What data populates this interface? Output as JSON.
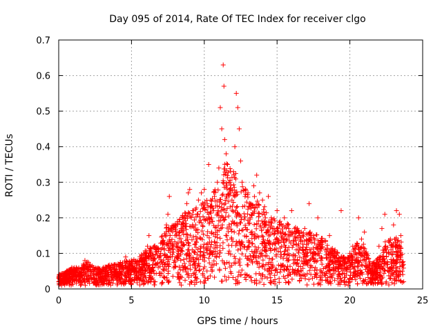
{
  "chart_data": {
    "type": "scatter",
    "title": "Day 095 of 2014, Rate Of TEC Index for receiver clgo",
    "xlabel": "GPS time / hours",
    "ylabel": "ROTI / TECUs",
    "xlim": [
      0,
      25
    ],
    "ylim": [
      0,
      0.7
    ],
    "x_ticks": [
      0,
      5,
      10,
      15,
      20,
      25
    ],
    "y_ticks": [
      0,
      0.1,
      0.2,
      0.3,
      0.4,
      0.5,
      0.6,
      0.7
    ],
    "x_tick_labels": [
      "0",
      "5",
      "10",
      "15",
      "20",
      "25"
    ],
    "y_tick_labels": [
      "0",
      "0.1",
      "0.2",
      "0.3",
      "0.4",
      "0.5",
      "0.6",
      "0.7"
    ],
    "grid": true,
    "marker": "+",
    "marker_color": "#ff0000",
    "series": [
      {
        "name": "ROTI",
        "points": [
          [
            0.0,
            0.02
          ],
          [
            0.1,
            0.03
          ],
          [
            0.2,
            0.01
          ],
          [
            0.3,
            0.02
          ],
          [
            0.4,
            0.03
          ],
          [
            0.5,
            0.04
          ],
          [
            0.6,
            0.02
          ],
          [
            0.7,
            0.05
          ],
          [
            0.8,
            0.03
          ],
          [
            0.9,
            0.06
          ],
          [
            1.0,
            0.04
          ],
          [
            1.1,
            0.05
          ],
          [
            1.2,
            0.06
          ],
          [
            1.3,
            0.04
          ],
          [
            1.4,
            0.05
          ],
          [
            1.5,
            0.03
          ],
          [
            1.6,
            0.06
          ],
          [
            1.7,
            0.07
          ],
          [
            1.8,
            0.08
          ],
          [
            1.9,
            0.07
          ],
          [
            2.0,
            0.06
          ],
          [
            2.2,
            0.05
          ],
          [
            2.4,
            0.04
          ],
          [
            2.6,
            0.05
          ],
          [
            2.8,
            0.04
          ],
          [
            3.0,
            0.03
          ],
          [
            3.2,
            0.05
          ],
          [
            3.4,
            0.04
          ],
          [
            3.6,
            0.06
          ],
          [
            3.8,
            0.05
          ],
          [
            4.0,
            0.04
          ],
          [
            4.2,
            0.05
          ],
          [
            4.4,
            0.06
          ],
          [
            4.6,
            0.09
          ],
          [
            4.8,
            0.05
          ],
          [
            5.0,
            0.06
          ],
          [
            5.2,
            0.05
          ],
          [
            5.4,
            0.07
          ],
          [
            5.6,
            0.08
          ],
          [
            5.8,
            0.06
          ],
          [
            6.0,
            0.09
          ],
          [
            6.1,
            0.12
          ],
          [
            6.2,
            0.15
          ],
          [
            6.3,
            0.1
          ],
          [
            6.5,
            0.08
          ],
          [
            6.7,
            0.11
          ],
          [
            6.9,
            0.09
          ],
          [
            7.1,
            0.13
          ],
          [
            7.3,
            0.15
          ],
          [
            7.4,
            0.18
          ],
          [
            7.5,
            0.21
          ],
          [
            7.6,
            0.26
          ],
          [
            7.7,
            0.17
          ],
          [
            7.8,
            0.12
          ],
          [
            8.0,
            0.15
          ],
          [
            8.2,
            0.13
          ],
          [
            8.4,
            0.17
          ],
          [
            8.6,
            0.2
          ],
          [
            8.8,
            0.24
          ],
          [
            8.9,
            0.27
          ],
          [
            9.0,
            0.28
          ],
          [
            9.2,
            0.22
          ],
          [
            9.4,
            0.18
          ],
          [
            9.6,
            0.25
          ],
          [
            9.8,
            0.27
          ],
          [
            10.0,
            0.28
          ],
          [
            10.2,
            0.24
          ],
          [
            10.3,
            0.35
          ],
          [
            10.5,
            0.2
          ],
          [
            10.7,
            0.26
          ],
          [
            10.9,
            0.3
          ],
          [
            11.0,
            0.34
          ],
          [
            11.1,
            0.51
          ],
          [
            11.2,
            0.45
          ],
          [
            11.3,
            0.63
          ],
          [
            11.35,
            0.57
          ],
          [
            11.4,
            0.42
          ],
          [
            11.5,
            0.38
          ],
          [
            11.6,
            0.35
          ],
          [
            11.7,
            0.3
          ],
          [
            11.8,
            0.27
          ],
          [
            11.9,
            0.25
          ],
          [
            12.0,
            0.33
          ],
          [
            12.1,
            0.4
          ],
          [
            12.2,
            0.55
          ],
          [
            12.3,
            0.51
          ],
          [
            12.4,
            0.45
          ],
          [
            12.5,
            0.36
          ],
          [
            12.6,
            0.3
          ],
          [
            12.8,
            0.26
          ],
          [
            13.0,
            0.27
          ],
          [
            13.2,
            0.23
          ],
          [
            13.4,
            0.29
          ],
          [
            13.6,
            0.32
          ],
          [
            13.8,
            0.27
          ],
          [
            14.0,
            0.25
          ],
          [
            14.2,
            0.2
          ],
          [
            14.4,
            0.26
          ],
          [
            14.6,
            0.2
          ],
          [
            14.8,
            0.17
          ],
          [
            15.0,
            0.22
          ],
          [
            15.2,
            0.19
          ],
          [
            15.5,
            0.2
          ],
          [
            15.8,
            0.17
          ],
          [
            16.0,
            0.22
          ],
          [
            16.3,
            0.16
          ],
          [
            16.6,
            0.14
          ],
          [
            16.9,
            0.17
          ],
          [
            17.2,
            0.24
          ],
          [
            17.5,
            0.15
          ],
          [
            17.8,
            0.2
          ],
          [
            18.0,
            0.13
          ],
          [
            18.3,
            0.11
          ],
          [
            18.6,
            0.15
          ],
          [
            18.9,
            0.1
          ],
          [
            19.2,
            0.08
          ],
          [
            19.4,
            0.22
          ],
          [
            19.6,
            0.07
          ],
          [
            19.8,
            0.05
          ],
          [
            20.0,
            0.1
          ],
          [
            20.2,
            0.12
          ],
          [
            20.4,
            0.08
          ],
          [
            20.6,
            0.2
          ],
          [
            20.8,
            0.14
          ],
          [
            21.0,
            0.16
          ],
          [
            21.2,
            0.05
          ],
          [
            21.4,
            0.03
          ],
          [
            21.6,
            0.04
          ],
          [
            21.8,
            0.03
          ],
          [
            22.0,
            0.12
          ],
          [
            22.2,
            0.17
          ],
          [
            22.4,
            0.21
          ],
          [
            22.6,
            0.06
          ],
          [
            22.8,
            0.03
          ],
          [
            23.0,
            0.18
          ],
          [
            23.2,
            0.22
          ],
          [
            23.4,
            0.21
          ],
          [
            23.5,
            0.15
          ],
          [
            23.6,
            0.05
          ],
          [
            23.7,
            0.02
          ]
        ],
        "envelope_hours": [
          0,
          0.5,
          1,
          1.5,
          2,
          2.5,
          3,
          3.5,
          4,
          4.5,
          5,
          5.5,
          6,
          6.5,
          7,
          7.5,
          8,
          8.5,
          9,
          9.5,
          10,
          10.5,
          11,
          11.5,
          12,
          12.5,
          13,
          13.5,
          14,
          14.5,
          15,
          15.5,
          16,
          16.5,
          17,
          17.5,
          18,
          18.5,
          19,
          19.5,
          20,
          20.5,
          21,
          21.5,
          22,
          22.5,
          23,
          23.5,
          23.7
        ],
        "envelope_upper": [
          0.03,
          0.04,
          0.05,
          0.05,
          0.07,
          0.05,
          0.05,
          0.06,
          0.06,
          0.07,
          0.07,
          0.08,
          0.1,
          0.11,
          0.13,
          0.18,
          0.17,
          0.2,
          0.22,
          0.22,
          0.24,
          0.25,
          0.3,
          0.35,
          0.33,
          0.3,
          0.26,
          0.25,
          0.23,
          0.2,
          0.18,
          0.18,
          0.17,
          0.16,
          0.15,
          0.15,
          0.14,
          0.12,
          0.1,
          0.08,
          0.08,
          0.12,
          0.12,
          0.06,
          0.08,
          0.13,
          0.13,
          0.14,
          0.05
        ]
      }
    ]
  }
}
